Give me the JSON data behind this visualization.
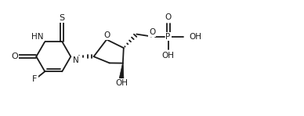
{
  "background_color": "#ffffff",
  "line_color": "#1a1a1a",
  "line_width": 1.3,
  "font_size": 7.5,
  "fig_width": 3.88,
  "fig_height": 1.48,
  "dpi": 100,
  "xlim": [
    0,
    10.5
  ],
  "ylim": [
    0,
    4.0
  ]
}
